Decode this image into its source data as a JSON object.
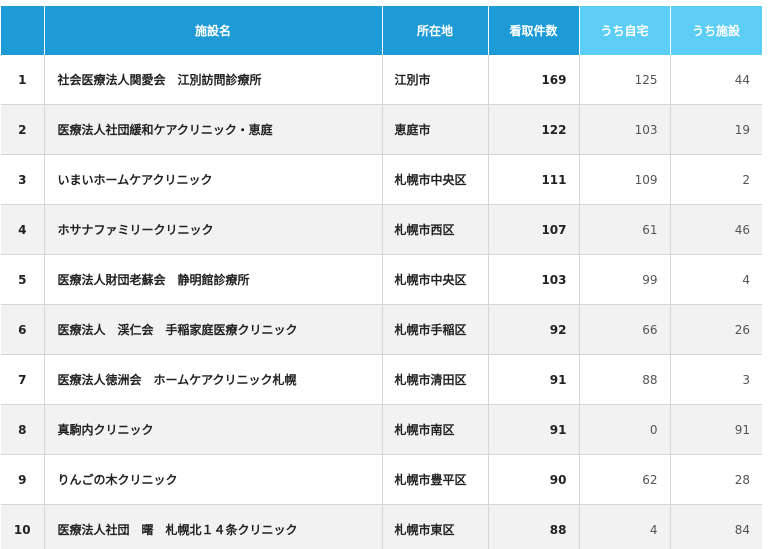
{
  "header": {
    "name": "施設名",
    "location": "所在地",
    "total": "看取件数",
    "home": "うち自宅",
    "facility": "うち施設"
  },
  "rows": [
    {
      "rank": "1",
      "name": "社会医療法人関愛会　江別訪問診療所",
      "location": "江別市",
      "total": "169",
      "home": "125",
      "facility": "44"
    },
    {
      "rank": "2",
      "name": "医療法人社団緩和ケアクリニック・恵庭",
      "location": "恵庭市",
      "total": "122",
      "home": "103",
      "facility": "19"
    },
    {
      "rank": "3",
      "name": "いまいホームケアクリニック",
      "location": "札幌市中央区",
      "total": "111",
      "home": "109",
      "facility": "2"
    },
    {
      "rank": "4",
      "name": "ホサナファミリークリニック",
      "location": "札幌市西区",
      "total": "107",
      "home": "61",
      "facility": "46"
    },
    {
      "rank": "5",
      "name": "医療法人財団老蘇会　静明館診療所",
      "location": "札幌市中央区",
      "total": "103",
      "home": "99",
      "facility": "4"
    },
    {
      "rank": "6",
      "name": "医療法人　渓仁会　手稲家庭医療クリニック",
      "location": "札幌市手稲区",
      "total": "92",
      "home": "66",
      "facility": "26"
    },
    {
      "rank": "7",
      "name": "医療法人徳洲会　ホームケアクリニック札幌",
      "location": "札幌市清田区",
      "total": "91",
      "home": "88",
      "facility": "3"
    },
    {
      "rank": "8",
      "name": "真駒内クリニック",
      "location": "札幌市南区",
      "total": "91",
      "home": "0",
      "facility": "91"
    },
    {
      "rank": "9",
      "name": "りんごの木クリニック",
      "location": "札幌市豊平区",
      "total": "90",
      "home": "62",
      "facility": "28"
    },
    {
      "rank": "10",
      "name": "医療法人社団　曙　札幌北１４条クリニック",
      "location": "札幌市東区",
      "total": "88",
      "home": "4",
      "facility": "84"
    }
  ]
}
